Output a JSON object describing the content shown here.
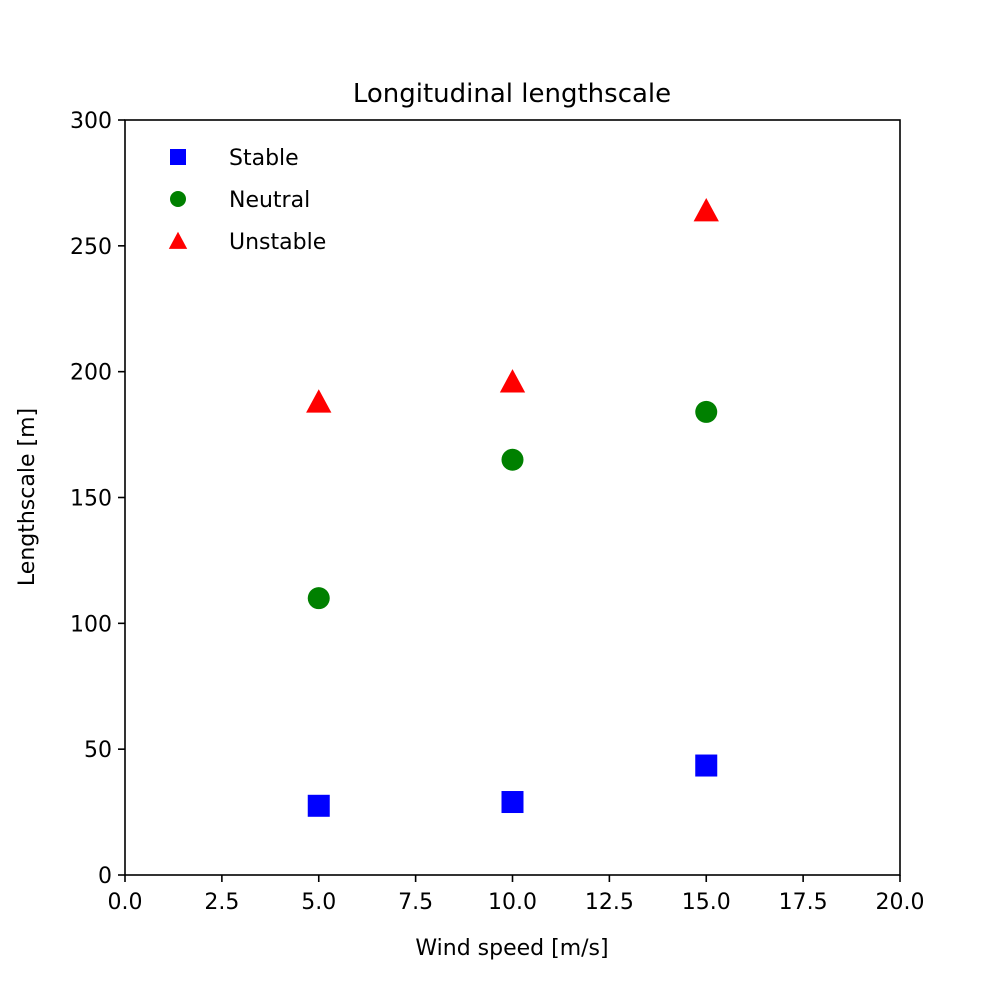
{
  "chart_data": {
    "type": "scatter",
    "title": "Longitudinal lengthscale",
    "xlabel": "Wind speed [m/s]",
    "ylabel": "Lengthscale [m]",
    "xlim": [
      0,
      20
    ],
    "ylim": [
      0,
      300
    ],
    "xticks": [
      "0.0",
      "2.5",
      "5.0",
      "7.5",
      "10.0",
      "12.5",
      "15.0",
      "17.5",
      "20.0"
    ],
    "yticks": [
      "0",
      "50",
      "100",
      "150",
      "200",
      "250",
      "300"
    ],
    "grid": false,
    "legend_position": "upper-left",
    "series": [
      {
        "name": "Stable",
        "marker": "square",
        "color": "#0000ff",
        "x": [
          5,
          10,
          15
        ],
        "y": [
          27.5,
          29,
          43.5
        ]
      },
      {
        "name": "Neutral",
        "marker": "circle",
        "color": "#008000",
        "x": [
          5,
          10,
          15
        ],
        "y": [
          110,
          165,
          184
        ]
      },
      {
        "name": "Unstable",
        "marker": "triangle",
        "color": "#ff0000",
        "x": [
          5,
          10,
          15
        ],
        "y": [
          188,
          196,
          264
        ]
      }
    ]
  }
}
